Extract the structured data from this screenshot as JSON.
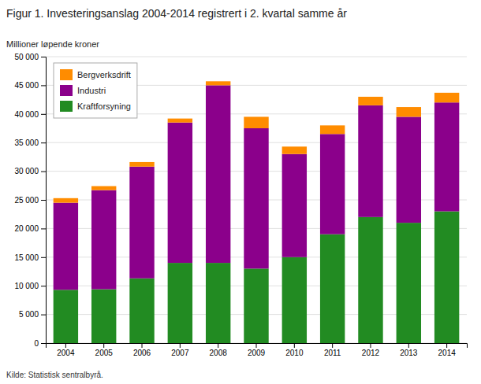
{
  "chart_data": {
    "type": "bar",
    "stacked": true,
    "title": "Figur 1. Investeringsanslag 2004-2014 registrert i 2. kvartal samme år",
    "y_label": "Millioner løpende kroner",
    "annotations": [
      "Kilde: Statistisk sentralbyrå."
    ],
    "categories": [
      "2004",
      "2005",
      "2006",
      "2007",
      "2008",
      "2009",
      "2010",
      "2011",
      "2012",
      "2013",
      "2014"
    ],
    "series": [
      {
        "name": "Kraftforsyning",
        "color": "#228B22",
        "values": [
          9300,
          9400,
          11300,
          14000,
          14000,
          13000,
          15000,
          19000,
          22000,
          21000,
          23000
        ]
      },
      {
        "name": "Industri",
        "color": "#8B008B",
        "values": [
          15200,
          17300,
          19500,
          24500,
          31000,
          24500,
          18000,
          17500,
          19500,
          18500,
          19000
        ]
      },
      {
        "name": "Bergverksdrift",
        "color": "#FF8C00",
        "values": [
          800,
          700,
          800,
          700,
          700,
          2000,
          1300,
          1500,
          1500,
          1700,
          1700
        ]
      }
    ],
    "ylim": [
      0,
      50000
    ],
    "yticks": [
      0,
      {
        "value": 5000,
        "label": "5 000"
      },
      {
        "value": 10000,
        "label": "10 000"
      },
      {
        "value": 15000,
        "label": "15 000"
      },
      {
        "value": 20000,
        "label": "20 000"
      },
      {
        "value": 25000,
        "label": "25 000"
      },
      {
        "value": 30000,
        "label": "30 000"
      },
      {
        "value": 35000,
        "label": "35 000"
      },
      {
        "value": 40000,
        "label": "40 000"
      },
      {
        "value": 45000,
        "label": "45 000"
      },
      {
        "value": 50000,
        "label": "50 000"
      }
    ],
    "grid": true,
    "legend": "upper left"
  }
}
